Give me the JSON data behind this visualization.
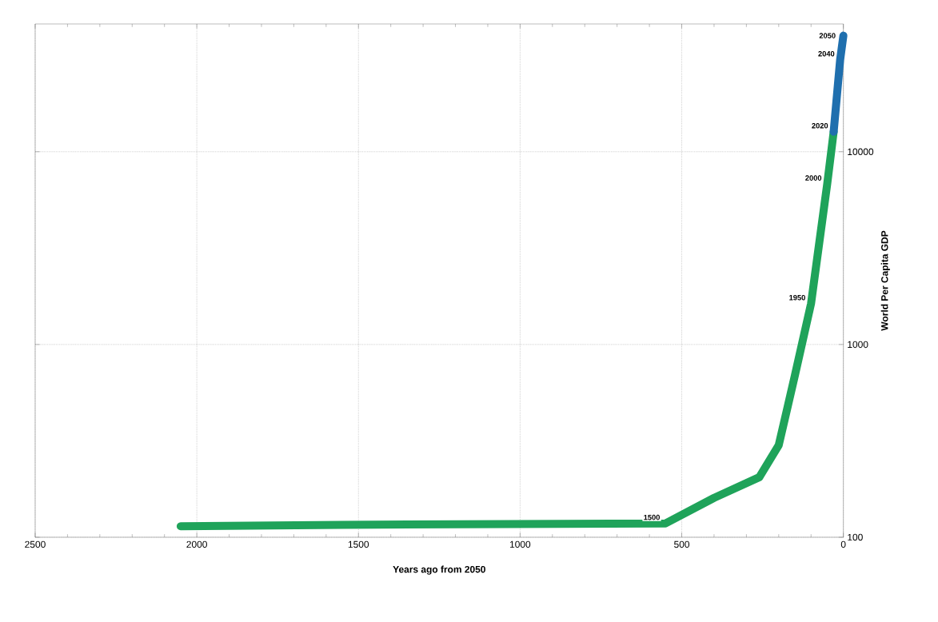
{
  "chart_data": {
    "type": "line",
    "xlabel": "Years ago from 2050",
    "ylabel": "World Per Capita GDP",
    "log": "y",
    "grid": true,
    "marker": "none",
    "line_style": "solid",
    "xlim": [
      2500,
      0
    ],
    "xticks": [
      2500,
      2000,
      1500,
      1000,
      500,
      0
    ],
    "ylim": [
      100,
      46000
    ],
    "yticks": [
      100,
      1000,
      10000
    ],
    "series": [
      {
        "color": "#1fa35a",
        "x": [
          2050,
          1550,
          550,
          400,
          260,
          200,
          150,
          100,
          50,
          30
        ],
        "values": [
          114,
          116,
          118,
          160,
          205,
          300,
          690,
          1630,
          6800,
          12700
        ]
      },
      {
        "color": "#1f6fae",
        "x": [
          30,
          10,
          0
        ],
        "values": [
          12700,
          30000,
          40000
        ]
      }
    ],
    "annotations": [
      {
        "text": "1500",
        "x": 550,
        "y": 118
      },
      {
        "text": "1950",
        "x": 100,
        "y": 1630
      },
      {
        "text": "2000",
        "x": 50,
        "y": 6800
      },
      {
        "text": "2020",
        "x": 30,
        "y": 12700
      },
      {
        "text": "2040",
        "x": 10,
        "y": 30000
      },
      {
        "text": "2050",
        "x": 0,
        "y": 40000
      }
    ]
  }
}
